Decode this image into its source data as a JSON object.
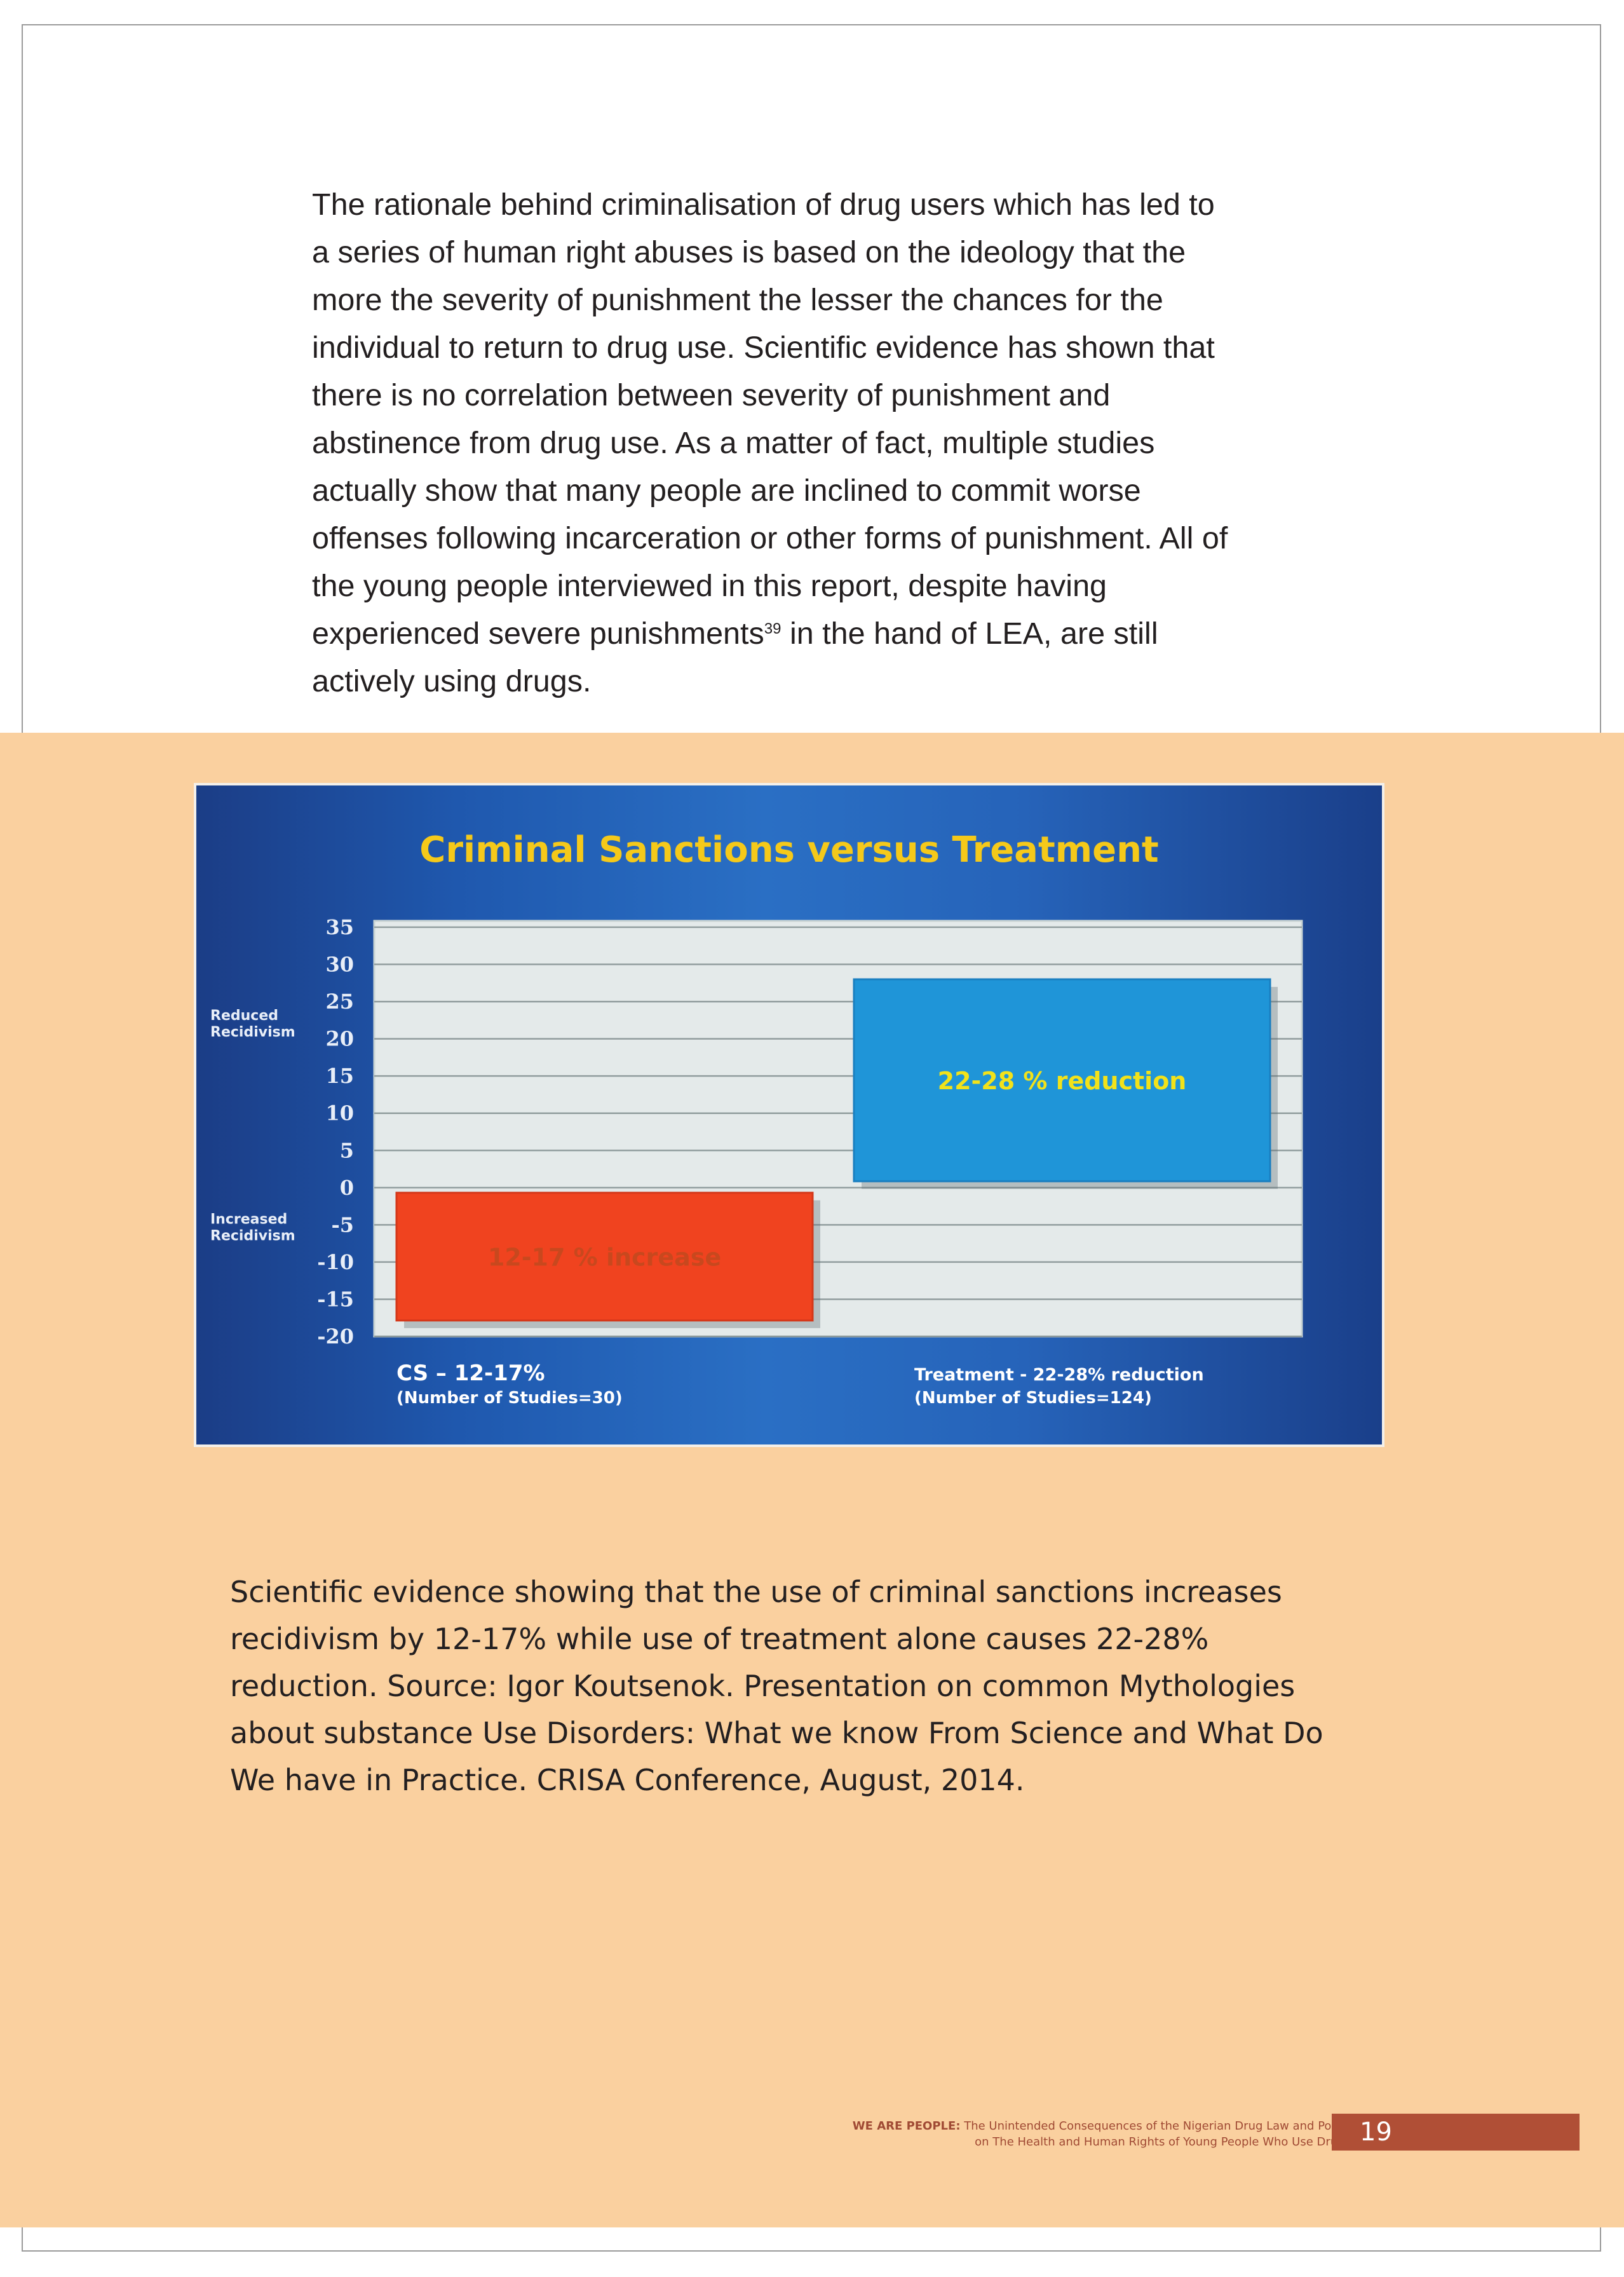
{
  "body_paragraph": {
    "lines": [
      "The rationale behind criminalisation of drug users which has led to",
      "a series of human right abuses is based on the ideology that the",
      "more the severity of punishment the lesser the chances for the",
      "individual to return to drug use. Scientific evidence has shown that",
      "there is no correlation between severity of punishment and",
      "abstinence from drug use.  As a matter of fact, multiple studies",
      "actually show that many people are inclined to commit worse",
      "offenses following incarceration or other forms of punishment.  All of",
      "the young people interviewed in this report, despite having"
    ],
    "line10_before": "experienced severe punishments",
    "footnote_ref": "39",
    "line10_after": " in the hand of LEA, are still",
    "line11": "actively using drugs."
  },
  "chart_data": {
    "type": "bar",
    "title": "Criminal Sanctions versus Treatment",
    "ylim": [
      -20,
      35
    ],
    "yticks": [
      "35",
      "30",
      "25",
      "20",
      "15",
      "10",
      "5",
      "0",
      "-5",
      "-10",
      "-15",
      "-20"
    ],
    "ylabel_positive": [
      "Reduced",
      "Recidivism"
    ],
    "ylabel_negative": [
      "Increased",
      "Recidivism"
    ],
    "grid": true,
    "categories": [
      "CS – 12-17%",
      "Treatment  - 22-28% reduction"
    ],
    "category_notes": [
      "(Number of Studies=30)",
      "(Number of Studies=124)"
    ],
    "bars": [
      {
        "range": [
          -12,
          -17
        ],
        "label": "12-17 % increase",
        "color": "#f0431f"
      },
      {
        "range": [
          22,
          28
        ],
        "label": "22-28 % reduction",
        "color": "#1f95d8"
      }
    ]
  },
  "caption": {
    "lines": [
      "Scientific evidence showing that the use of criminal sanctions increases",
      "recidivism by 12-17% while use of treatment alone causes 22-28%",
      "reduction. Source: Igor Koutsenok. Presentation on common Mythologies",
      "about substance Use Disorders: What we know From Science and What Do",
      "We have in Practice. CRISA Conference, August, 2014."
    ]
  },
  "footer": {
    "bold_prefix": "WE ARE PEOPLE:",
    "line1_rest": " The Unintended Consequences of the Nigerian Drug Law and Policy",
    "line2": "on The Health and Human Rights of Young People Who Use Drugs",
    "page_number": "19"
  }
}
